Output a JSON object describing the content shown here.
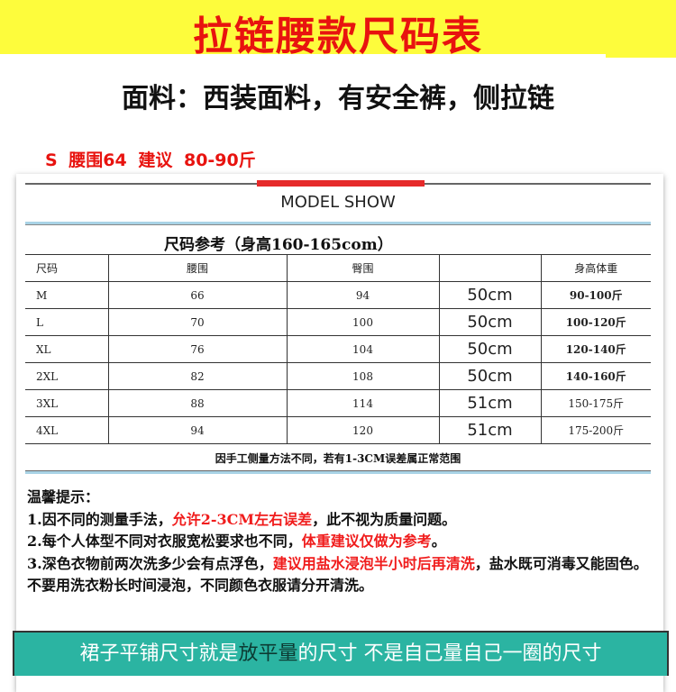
{
  "title": "拉链腰款尺码表",
  "fabric": "面料：西装面料，有安全裤，侧拉链",
  "s_line": "S 腰围64 建议 80-90斤",
  "model_show": "MODEL SHOW",
  "reference": "尺码参考（身高160-165com）",
  "colors": {
    "banner": "#fdfc3c",
    "title": "#e8130f",
    "accent_bar": "#e62a2a",
    "footer": "#2bb4a2"
  },
  "table": {
    "headers": [
      "尺码",
      "腰围",
      "臀围",
      "",
      "身高体重"
    ],
    "rows": [
      [
        "M",
        "66",
        "94",
        "50cm",
        "90-100斤"
      ],
      [
        "L",
        "70",
        "100",
        "50cm",
        "100-120斤"
      ],
      [
        "XL",
        "76",
        "104",
        "50cm",
        "120-140斤"
      ],
      [
        "2XL",
        "82",
        "108",
        "50cm",
        "140-160斤"
      ],
      [
        "3XL",
        "88",
        "114",
        "51cm",
        "150-175斤"
      ],
      [
        "4XL",
        "94",
        "120",
        "51cm",
        "175-200斤"
      ]
    ]
  },
  "note": "因手工侧量方法不同，若有1-3CM误差属正常范围",
  "tips": {
    "heading": "温馨提示：",
    "t1a": "1.因不同的测量手法，",
    "t1b": "允许2-3CM左右误差",
    "t1c": "，此不视为质量问题。",
    "t2a": "2.每个人体型不同对衣服宽松要求也不同，",
    "t2b": "体重建议仅做为参考",
    "t2c": "。",
    "t3a": "3.深色衣物前两次洗多少会有点浮色，",
    "t3b": "建议用盐水浸泡半小时后再清洗",
    "t3c": "，盐水既可消毒又能固色。不要用洗衣粉长时间浸泡，不同颜色衣服请分开清洗。"
  },
  "footer": {
    "a": "裙子平铺尺寸就是",
    "b": "放平量",
    "c": "的尺寸 不是自己量自己一圈的尺寸"
  }
}
